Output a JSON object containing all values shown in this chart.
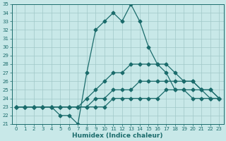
{
  "xlabel": "Humidex (Indice chaleur)",
  "background_color": "#c8e8e8",
  "grid_color": "#a0c8c8",
  "line_color": "#1a6b6b",
  "x_hours": [
    0,
    1,
    2,
    3,
    4,
    5,
    6,
    7,
    8,
    9,
    10,
    11,
    12,
    13,
    14,
    15,
    16,
    17,
    18,
    19,
    20,
    21,
    22,
    23
  ],
  "humidex_main": [
    23,
    23,
    23,
    23,
    23,
    22,
    22,
    21,
    27,
    32,
    33,
    34,
    33,
    35,
    33,
    30,
    28,
    27,
    25,
    25,
    24,
    24,
    24,
    24
  ],
  "humidex_line2": [
    23,
    23,
    23,
    23,
    23,
    23,
    23,
    23,
    24,
    25,
    26,
    27,
    27,
    28,
    28,
    28,
    28,
    28,
    27,
    26,
    26,
    25,
    25,
    24
  ],
  "humidex_line3": [
    23,
    23,
    23,
    23,
    23,
    23,
    23,
    23,
    23,
    24,
    24,
    25,
    25,
    25,
    26,
    26,
    26,
    26,
    26,
    26,
    26,
    25,
    25,
    24
  ],
  "humidex_line4": [
    23,
    23,
    23,
    23,
    23,
    23,
    23,
    23,
    23,
    23,
    23,
    24,
    24,
    24,
    24,
    24,
    24,
    25,
    25,
    25,
    25,
    25,
    24,
    24
  ],
  "ylim": [
    21,
    35
  ],
  "xlim": [
    -0.5,
    23.5
  ],
  "yticks": [
    21,
    22,
    23,
    24,
    25,
    26,
    27,
    28,
    29,
    30,
    31,
    32,
    33,
    34,
    35
  ],
  "xticks": [
    0,
    1,
    2,
    3,
    4,
    5,
    6,
    7,
    8,
    9,
    10,
    11,
    12,
    13,
    14,
    15,
    16,
    17,
    18,
    19,
    20,
    21,
    22,
    23
  ]
}
